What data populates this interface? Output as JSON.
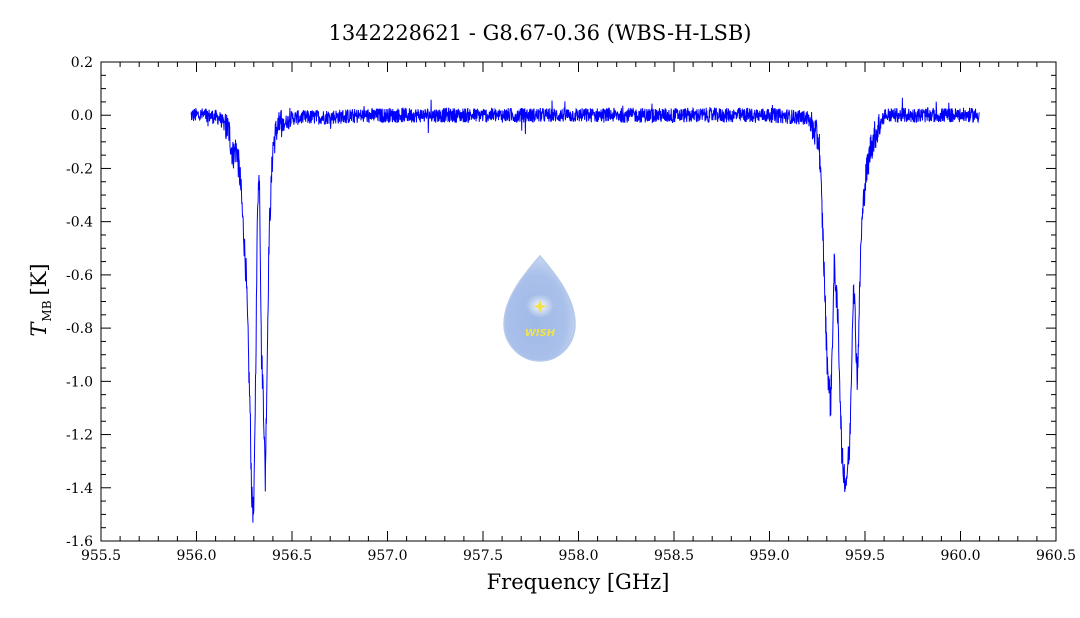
{
  "chart_data": {
    "type": "line",
    "title": "1342228621 - G8.67-0.36 (WBS-H-LSB)",
    "xlabel": "Frequency [GHz]",
    "ylabel_main": "T",
    "ylabel_sub": "MB",
    "ylabel_unit": "[K]",
    "xlim": [
      955.5,
      960.5
    ],
    "ylim": [
      -1.6,
      0.2
    ],
    "x_major_ticks": [
      955.5,
      956.0,
      956.5,
      957.0,
      957.5,
      958.0,
      958.5,
      959.0,
      959.5,
      960.0,
      960.5
    ],
    "x_tick_labels": [
      "955.5",
      "956.0",
      "956.5",
      "957.0",
      "957.5",
      "958.0",
      "958.5",
      "959.0",
      "959.5",
      "960.0",
      "960.5"
    ],
    "y_major_ticks": [
      0.2,
      0.0,
      -0.2,
      -0.4,
      -0.6,
      -0.8,
      -1.0,
      -1.2,
      -1.4,
      -1.6
    ],
    "y_tick_labels": [
      "0.2",
      "0.0",
      "-0.2",
      "-0.4",
      "-0.6",
      "-0.8",
      "-1.0",
      "-1.2",
      "-1.4",
      "-1.6"
    ],
    "grid": false,
    "series": [
      {
        "color": "#0000ff",
        "x": [
          955.97,
          956.05,
          956.12,
          956.17,
          956.19,
          956.21,
          956.23,
          956.26,
          956.28,
          956.29,
          956.3,
          956.31,
          956.32,
          956.33,
          956.34,
          956.35,
          956.36,
          956.38,
          956.4,
          956.42,
          956.5,
          957.0,
          957.5,
          958.0,
          958.5,
          959.0,
          959.2,
          959.26,
          959.28,
          959.3,
          959.32,
          959.34,
          959.36,
          959.38,
          959.4,
          959.42,
          959.44,
          959.46,
          959.48,
          959.5,
          959.53,
          959.56,
          959.6,
          959.8,
          960.1
        ],
        "y": [
          0.0,
          0.0,
          -0.01,
          -0.06,
          -0.15,
          -0.12,
          -0.25,
          -0.6,
          -1.1,
          -1.45,
          -1.5,
          -0.95,
          -0.3,
          -0.22,
          -0.9,
          -1.05,
          -1.38,
          -0.45,
          -0.12,
          -0.05,
          -0.01,
          0.0,
          0.0,
          0.0,
          0.0,
          0.0,
          -0.01,
          -0.1,
          -0.45,
          -0.9,
          -1.1,
          -0.55,
          -0.8,
          -1.3,
          -1.38,
          -1.25,
          -0.6,
          -1.0,
          -0.45,
          -0.25,
          -0.12,
          -0.06,
          0.0,
          0.0,
          0.0
        ]
      }
    ]
  },
  "logo": {
    "text": "WISH"
  }
}
